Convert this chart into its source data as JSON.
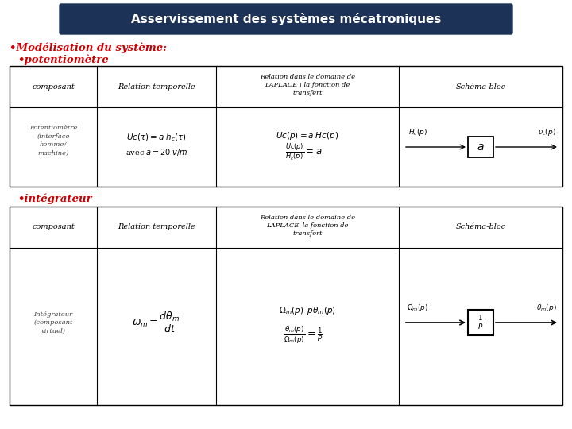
{
  "title": "Asservissement des systèmes mécatroniques",
  "title_bg": "#1c3257",
  "title_fg": "#ffffff",
  "subtitle": "•Modélisation du système:",
  "section1": "•potentiomètre",
  "section2": "•intégrateur",
  "bg_color": "#ffffff",
  "red_color": "#cc0000"
}
